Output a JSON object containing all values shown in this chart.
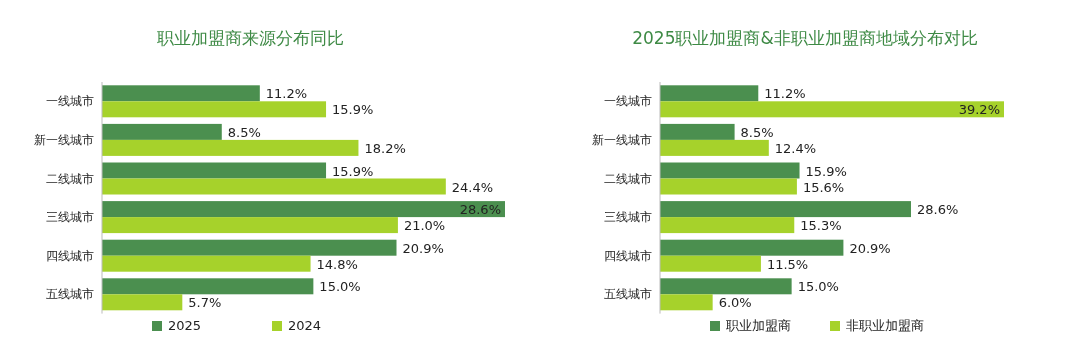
{
  "chart_data": [
    {
      "type": "bar",
      "orientation": "horizontal",
      "title": "职业加盟商来源分布同比",
      "categories": [
        "一线城市",
        "新一线城市",
        "二线城市",
        "三线城市",
        "四线城市",
        "五线城市"
      ],
      "legend": "bottom",
      "series": [
        {
          "name": "2025",
          "color": "#4b8f4f",
          "values": [
            11.2,
            8.5,
            15.9,
            28.6,
            20.9,
            15.0
          ],
          "value_labels": [
            "11.2%",
            "8.5%",
            "15.9%",
            "28.6%",
            "20.9%",
            "15.0%"
          ]
        },
        {
          "name": "2024",
          "color": "#a6d22b",
          "values": [
            15.9,
            18.2,
            24.4,
            21.0,
            14.8,
            5.7
          ],
          "value_labels": [
            "15.9%",
            "18.2%",
            "24.4%",
            "21.0%",
            "14.8%",
            "5.7%"
          ]
        }
      ]
    },
    {
      "type": "bar",
      "orientation": "horizontal",
      "title": "2025职业加盟商&非职业加盟商地域分布对比",
      "categories": [
        "一线城市",
        "新一线城市",
        "二线城市",
        "三线城市",
        "四线城市",
        "五线城市"
      ],
      "legend": "bottom",
      "series": [
        {
          "name": "职业加盟商",
          "color": "#4b8f4f",
          "values": [
            11.2,
            8.5,
            15.9,
            28.6,
            20.9,
            15.0
          ],
          "value_labels": [
            "11.2%",
            "8.5%",
            "15.9%",
            "28.6%",
            "20.9%",
            "15.0%"
          ]
        },
        {
          "name": "非职业加盟商",
          "color": "#a6d22b",
          "values": [
            39.2,
            12.4,
            15.6,
            15.3,
            11.5,
            6.0
          ],
          "value_labels": [
            "39.2%",
            "12.4%",
            "15.6%",
            "15.3%",
            "11.5%",
            "6.0%"
          ]
        }
      ]
    }
  ]
}
